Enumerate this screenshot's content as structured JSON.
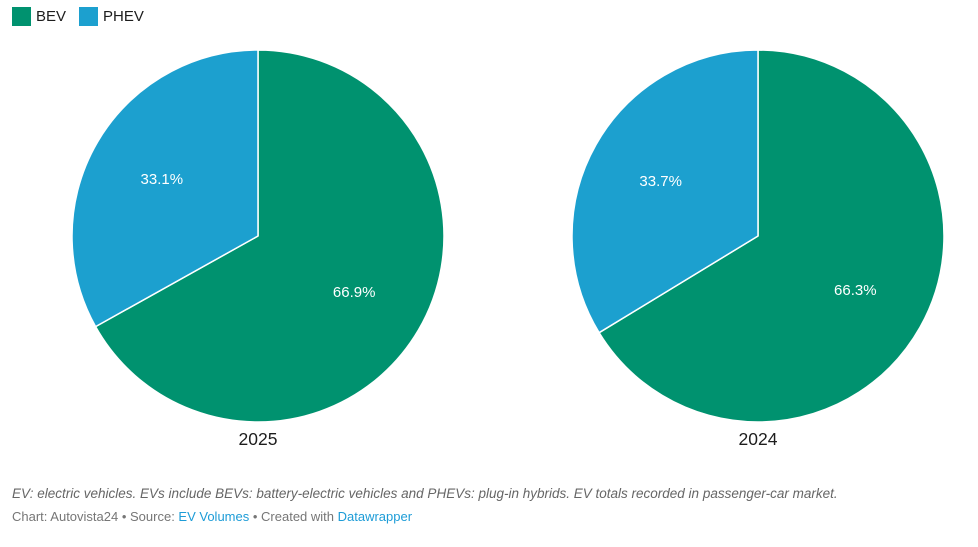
{
  "legend": {
    "items": [
      {
        "label": "BEV",
        "color": "#00926F"
      },
      {
        "label": "PHEV",
        "color": "#1CA0CF"
      }
    ]
  },
  "chart_data": {
    "type": "pie",
    "units": "%",
    "start_angle": "top-clockwise",
    "legend_position": "top-left",
    "colors": {
      "BEV": "#00926F",
      "PHEV": "#1CA0CF"
    },
    "slice_label_color": "#ffffff",
    "slice_stroke": "#ffffff",
    "pies": [
      {
        "title": "2025",
        "slices": [
          {
            "label": "BEV",
            "value": 66.9,
            "display": "66.9%"
          },
          {
            "label": "PHEV",
            "value": 33.1,
            "display": "33.1%"
          }
        ]
      },
      {
        "title": "2024",
        "slices": [
          {
            "label": "BEV",
            "value": 66.3,
            "display": "66.3%"
          },
          {
            "label": "PHEV",
            "value": 33.7,
            "display": "33.7%"
          }
        ]
      }
    ]
  },
  "footer": {
    "note": "EV: electric vehicles. EVs include BEVs: battery-electric vehicles and PHEVs: plug-in hybrids. EV totals recorded in passenger-car market.",
    "credits": {
      "part1": "Chart: Autovista24 • Source: ",
      "link1": "EV Volumes",
      "part2": " • Created with ",
      "link2": "Datawrapper"
    }
  }
}
